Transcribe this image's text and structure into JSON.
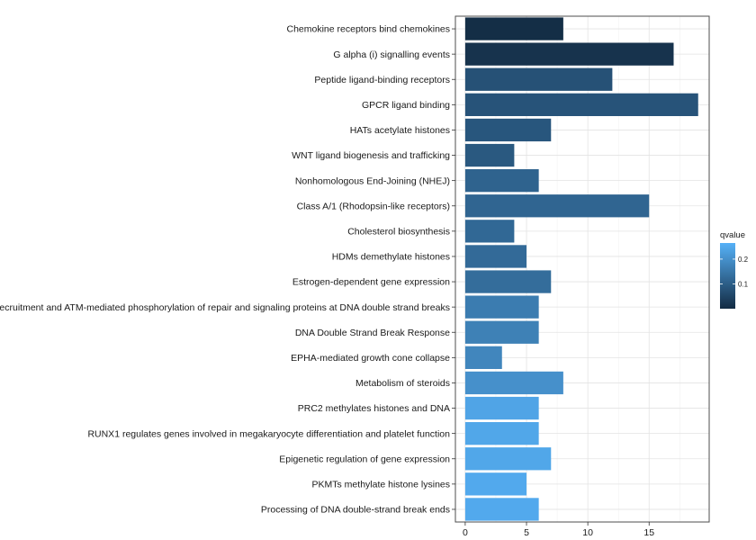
{
  "chart_data": {
    "type": "bar",
    "orientation": "horizontal",
    "categories": [
      "Chemokine receptors bind chemokines",
      "G alpha (i) signalling events",
      "Peptide ligand-binding receptors",
      "GPCR ligand binding",
      "HATs acetylate histones",
      "WNT ligand biogenesis and trafficking",
      "Nonhomologous End-Joining (NHEJ)",
      "Class A/1 (Rhodopsin-like receptors)",
      "Cholesterol biosynthesis",
      "HDMs demethylate histones",
      "Estrogen-dependent gene expression",
      "Recruitment and ATM-mediated phosphorylation of repair and signaling proteins at DNA double strand breaks",
      "DNA Double Strand Break Response",
      "EPHA-mediated growth cone collapse",
      "Metabolism of steroids",
      "PRC2 methylates histones and DNA",
      "RUNX1 regulates genes involved in megakaryocyte differentiation and platelet function",
      "Epigenetic regulation of gene expression",
      "PKMTs methylate histone lysines",
      "Processing of DNA double-strand break ends"
    ],
    "values": [
      8,
      17,
      12,
      19,
      7,
      4,
      6,
      15,
      4,
      5,
      7,
      6,
      6,
      3,
      8,
      6,
      6,
      7,
      5,
      6
    ],
    "qvalue": [
      0.005,
      0.015,
      0.075,
      0.08,
      0.085,
      0.09,
      0.11,
      0.115,
      0.12,
      0.125,
      0.13,
      0.16,
      0.17,
      0.18,
      0.2,
      0.24,
      0.245,
      0.245,
      0.25,
      0.25
    ],
    "title": "",
    "xlabel": "",
    "ylabel": "",
    "xlim": [
      -0.8,
      19.9
    ],
    "x_ticks": [
      0,
      5,
      10,
      15
    ],
    "grid": true,
    "legend": {
      "title": "qvalue",
      "placement": "right",
      "ticks": [
        0.1,
        0.2
      ],
      "range": [
        0.0,
        0.265
      ],
      "color_low": "#132b43",
      "color_high": "#56b1f7"
    }
  }
}
